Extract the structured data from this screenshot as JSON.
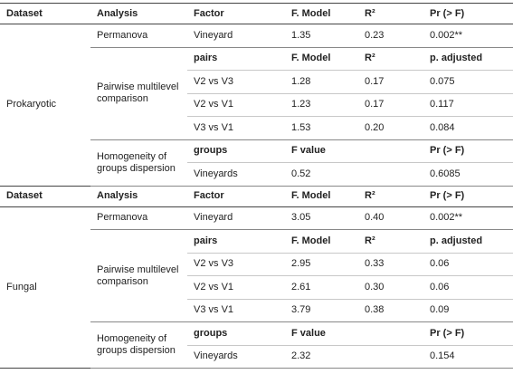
{
  "sections": [
    {
      "header": {
        "dataset": "Dataset",
        "analysis": "Analysis",
        "factor": "Factor",
        "f": "F. Model",
        "r2": "R²",
        "p": "Pr (> F)"
      },
      "dataset": "Prokaryotic",
      "groups": [
        {
          "analysis": "Permanova",
          "rows": [
            {
              "factor": "Vineyard",
              "f": "1.35",
              "r2": "0.23",
              "p": "0.002**"
            }
          ]
        },
        {
          "analysis": "Pairwise multilevel comparison",
          "subheader": {
            "factor": "pairs",
            "f": "F. Model",
            "r2": "R²",
            "p": "p. adjusted"
          },
          "rows": [
            {
              "factor": "V2 vs V3",
              "f": "1.28",
              "r2": "0.17",
              "p": "0.075"
            },
            {
              "factor": "V2 vs V1",
              "f": "1.23",
              "r2": "0.17",
              "p": "0.117"
            },
            {
              "factor": "V3 vs V1",
              "f": "1.53",
              "r2": "0.20",
              "p": "0.084"
            }
          ]
        },
        {
          "analysis": "Homogeneity of groups dispersion",
          "subheader": {
            "factor": "groups",
            "f": "F value",
            "p": "Pr (> F)"
          },
          "rows": [
            {
              "factor": "Vineyards",
              "f": "0.52",
              "p": "0.6085"
            }
          ]
        }
      ]
    },
    {
      "header": {
        "dataset": "Dataset",
        "analysis": "Analysis",
        "factor": "Factor",
        "f": "F. Model",
        "r2": "R²",
        "p": "Pr (> F)"
      },
      "dataset": "Fungal",
      "groups": [
        {
          "analysis": "Permanova",
          "rows": [
            {
              "factor": "Vineyard",
              "f": "3.05",
              "r2": "0.40",
              "p": "0.002**"
            }
          ]
        },
        {
          "analysis": "Pairwise multilevel comparison",
          "subheader": {
            "factor": "pairs",
            "f": "F. Model",
            "r2": "R²",
            "p": "p. adjusted"
          },
          "rows": [
            {
              "factor": "V2 vs V3",
              "f": "2.95",
              "r2": "0.33",
              "p": "0.06"
            },
            {
              "factor": "V2 vs V1",
              "f": "2.61",
              "r2": "0.30",
              "p": "0.06"
            },
            {
              "factor": "V3 vs V1",
              "f": "3.79",
              "r2": "0.38",
              "p": "0.09"
            }
          ]
        },
        {
          "analysis": "Homogeneity of groups dispersion",
          "subheader": {
            "factor": "groups",
            "f": "F value",
            "p": "Pr (> F)"
          },
          "rows": [
            {
              "factor": "Vineyards",
              "f": "2.32",
              "p": "0.154"
            }
          ]
        }
      ]
    }
  ]
}
